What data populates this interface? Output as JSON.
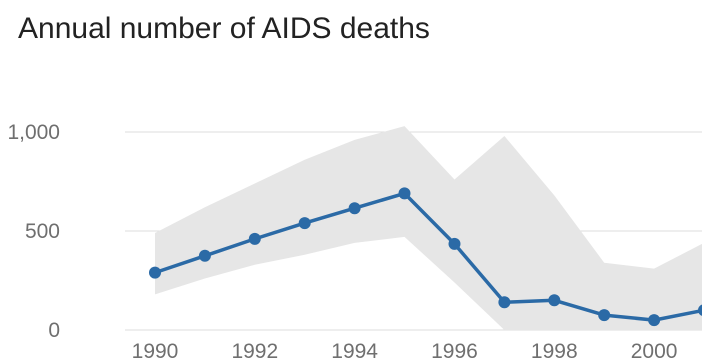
{
  "chart_data": {
    "type": "line",
    "title": "Annual number of AIDS deaths",
    "xlabel": "",
    "ylabel": "",
    "x": [
      1990,
      1991,
      1992,
      1993,
      1994,
      1995,
      1996,
      1997,
      1998,
      1999,
      2000,
      2001
    ],
    "series": [
      {
        "values": [
          290,
          375,
          460,
          540,
          615,
          690,
          435,
          140,
          150,
          75,
          50,
          100
        ],
        "lower": [
          180,
          260,
          330,
          380,
          440,
          470,
          240,
          0,
          0,
          0,
          0,
          0
        ],
        "upper": [
          490,
          620,
          740,
          860,
          960,
          1030,
          760,
          980,
          680,
          340,
          310,
          440
        ],
        "color": "#2b6aa6",
        "band_color": "#e6e6e6"
      }
    ],
    "xticks": [
      "1990",
      "1992",
      "1994",
      "1996",
      "1998",
      "2000"
    ],
    "yticks": [
      "0",
      "500",
      "1,000"
    ],
    "xlim": [
      1990,
      2001
    ],
    "ylim": [
      0,
      1000
    ],
    "grid": true,
    "legend": "none"
  }
}
